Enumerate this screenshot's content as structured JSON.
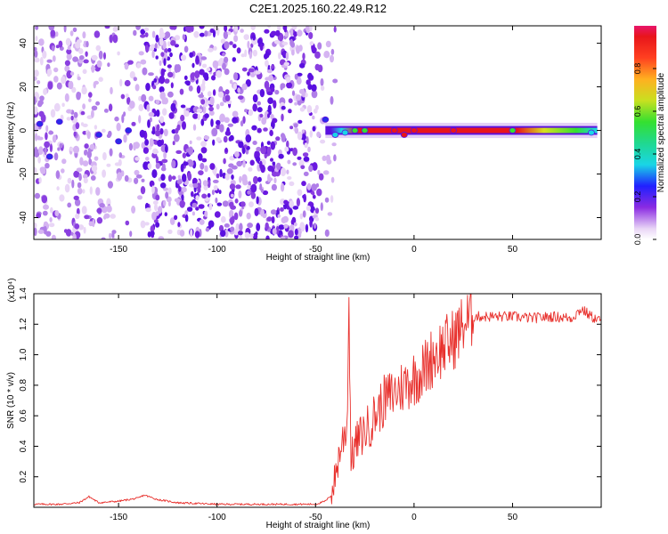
{
  "figure": {
    "title": "C2E1.2025.160.22.49.R12"
  },
  "colors": {
    "snr_line": "#e8302c",
    "spec_low": "#e9d6f6",
    "spec_mid": "#5a10e0",
    "spec_cyan": "#19d6e6",
    "spec_green": "#34e030",
    "spec_red": "#e8151b"
  },
  "chart_data": [
    {
      "type": "heatmap",
      "title": "C2E1.2025.160.22.49.R12",
      "xlabel": "Height of straight line (km)",
      "ylabel": "Frequency (Hz)",
      "xlim": [
        -193,
        95
      ],
      "ylim": [
        -50,
        48
      ],
      "x_ticks": [
        -150,
        -100,
        -50,
        0,
        50
      ],
      "y_ticks": [
        -40,
        -20,
        0,
        20,
        40
      ],
      "colorbar": {
        "label": "Normalized spectral amplitude",
        "range": [
          0,
          1
        ],
        "ticks": [
          "0.0",
          "0.2",
          "0.4",
          "0.6",
          "0.8"
        ],
        "tick_values": [
          0,
          0.2,
          0.4,
          0.6,
          0.8
        ]
      },
      "ridge": [
        {
          "x": -190,
          "freq": 3,
          "amp": 0.3
        },
        {
          "x": -185,
          "freq": -12,
          "amp": 0.35
        },
        {
          "x": -180,
          "freq": 4,
          "amp": 0.3
        },
        {
          "x": -160,
          "freq": -2,
          "amp": 0.3
        },
        {
          "x": -150,
          "freq": -5,
          "amp": 0.3
        },
        {
          "x": -145,
          "freq": 0,
          "amp": 0.3
        },
        {
          "x": -45,
          "freq": 5,
          "amp": 0.3
        },
        {
          "x": -40,
          "freq": -2,
          "amp": 0.4
        },
        {
          "x": -35,
          "freq": -1,
          "amp": 0.5
        },
        {
          "x": -30,
          "freq": 0,
          "amp": 0.6
        },
        {
          "x": -25,
          "freq": 0,
          "amp": 0.8
        },
        {
          "x": -10,
          "freq": 0,
          "amp": 0.9
        },
        {
          "x": -5,
          "freq": -2,
          "amp": 0.85
        },
        {
          "x": 0,
          "freq": 0,
          "amp": 0.9
        },
        {
          "x": 20,
          "freq": 0,
          "amp": 0.95
        },
        {
          "x": 50,
          "freq": 0,
          "amp": 0.6
        },
        {
          "x": 90,
          "freq": -1,
          "amp": 0.5
        }
      ]
    },
    {
      "type": "line",
      "xlabel": "Height of straight line (km)",
      "ylabel": "SNR (10 * v/v)",
      "y_multiplier": "(x10⁴)",
      "xlim": [
        -193,
        95
      ],
      "ylim": [
        0,
        1.4
      ],
      "x_ticks": [
        -150,
        -100,
        -50,
        0,
        50
      ],
      "y_ticks": [
        "0.2",
        "0.4",
        "0.6",
        "0.8",
        "1.0",
        "1.2",
        "1.4"
      ],
      "y_tick_values": [
        0.2,
        0.4,
        0.6,
        0.8,
        1.0,
        1.2,
        1.4
      ],
      "series": [
        {
          "x": [
            -193,
            -180,
            -170,
            -165,
            -160,
            -150,
            -140,
            -137,
            -130,
            -120,
            -100,
            -80,
            -60,
            -50,
            -45,
            -42,
            -40,
            -38,
            -36,
            -34,
            -33,
            -32,
            -30,
            -28,
            -25,
            -22,
            -20,
            -15,
            -10,
            -5,
            0,
            5,
            10,
            15,
            20,
            25,
            30,
            40,
            50,
            60,
            70,
            80,
            85,
            90,
            95
          ],
          "values": [
            0.02,
            0.02,
            0.03,
            0.07,
            0.03,
            0.04,
            0.06,
            0.08,
            0.05,
            0.03,
            0.02,
            0.02,
            0.02,
            0.02,
            0.04,
            0.08,
            0.2,
            0.35,
            0.45,
            0.55,
            1.35,
            0.3,
            0.4,
            0.45,
            0.5,
            0.55,
            0.6,
            0.7,
            0.75,
            0.8,
            0.85,
            0.9,
            1.0,
            1.05,
            1.1,
            1.2,
            1.25,
            1.25,
            1.25,
            1.24,
            1.25,
            1.24,
            1.3,
            1.25,
            1.22
          ]
        }
      ]
    }
  ]
}
